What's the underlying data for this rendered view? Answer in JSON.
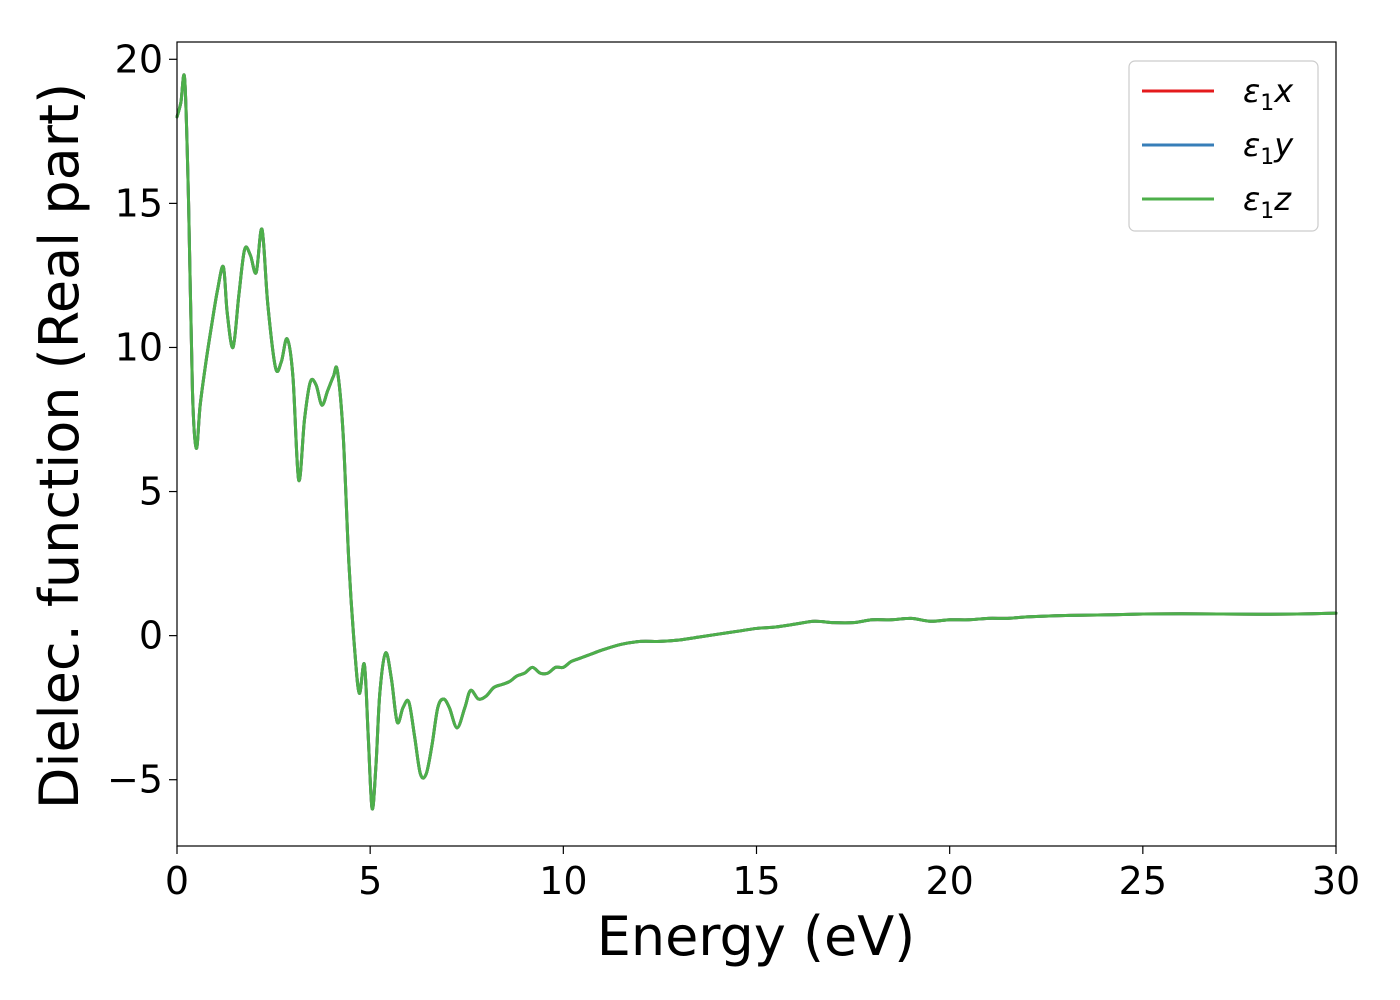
{
  "chart_data": {
    "type": "line",
    "title": "",
    "xlabel": "Energy (eV)",
    "ylabel": "Dielec. function (Real part)",
    "xlim": [
      0,
      30
    ],
    "ylim": [
      -7.3,
      20.6
    ],
    "xticks": [
      0,
      5,
      10,
      15,
      20,
      25,
      30
    ],
    "yticks": [
      -5,
      0,
      5,
      10,
      15,
      20
    ],
    "xtick_labels": [
      "0",
      "5",
      "10",
      "15",
      "20",
      "25",
      "30"
    ],
    "ytick_labels": [
      "−5",
      "0",
      "5",
      "10",
      "15",
      "20"
    ],
    "grid": false,
    "legend_position": "top-right",
    "x": [
      0.0,
      0.1,
      0.2,
      0.3,
      0.4,
      0.5,
      0.6,
      0.75,
      0.9,
      1.05,
      1.2,
      1.3,
      1.45,
      1.6,
      1.75,
      1.9,
      2.05,
      2.2,
      2.35,
      2.55,
      2.7,
      2.85,
      3.0,
      3.15,
      3.3,
      3.45,
      3.6,
      3.75,
      3.9,
      4.05,
      4.15,
      4.3,
      4.45,
      4.6,
      4.72,
      4.85,
      4.95,
      5.05,
      5.15,
      5.25,
      5.4,
      5.55,
      5.7,
      5.85,
      6.0,
      6.15,
      6.3,
      6.45,
      6.6,
      6.75,
      6.9,
      7.05,
      7.25,
      7.45,
      7.6,
      7.8,
      8.0,
      8.2,
      8.4,
      8.6,
      8.8,
      9.0,
      9.2,
      9.4,
      9.6,
      9.8,
      10.0,
      10.2,
      10.4,
      10.6,
      10.8,
      11.0,
      11.5,
      12.0,
      12.5,
      13.0,
      13.5,
      14.0,
      14.5,
      15.0,
      15.5,
      16.0,
      16.5,
      17.0,
      17.5,
      18.0,
      18.5,
      19.0,
      19.5,
      20.0,
      20.5,
      21.0,
      21.5,
      22.0,
      23.0,
      24.0,
      25.0,
      26.0,
      27.0,
      28.0,
      29.0,
      30.0
    ],
    "series": [
      {
        "name": "ε",
        "name_sub": "1",
        "name_suffix": "x",
        "color": "#e41a1c",
        "values": [
          18.0,
          18.5,
          19.3,
          15.0,
          8.5,
          6.5,
          8.0,
          9.5,
          10.8,
          12.0,
          12.8,
          11.2,
          10.0,
          11.8,
          13.4,
          13.2,
          12.6,
          14.1,
          11.5,
          9.3,
          9.5,
          10.3,
          9.0,
          5.4,
          7.5,
          8.8,
          8.7,
          8.0,
          8.5,
          9.0,
          9.2,
          7.0,
          2.5,
          -0.5,
          -2.0,
          -1.0,
          -3.5,
          -6.0,
          -4.5,
          -2.0,
          -0.6,
          -1.5,
          -3.0,
          -2.5,
          -2.3,
          -3.5,
          -4.8,
          -4.8,
          -3.8,
          -2.5,
          -2.2,
          -2.5,
          -3.2,
          -2.5,
          -1.9,
          -2.2,
          -2.1,
          -1.8,
          -1.7,
          -1.6,
          -1.4,
          -1.3,
          -1.1,
          -1.3,
          -1.3,
          -1.1,
          -1.1,
          -0.9,
          -0.8,
          -0.7,
          -0.6,
          -0.5,
          -0.3,
          -0.2,
          -0.2,
          -0.15,
          -0.05,
          0.05,
          0.15,
          0.25,
          0.3,
          0.4,
          0.5,
          0.45,
          0.45,
          0.55,
          0.55,
          0.6,
          0.5,
          0.55,
          0.55,
          0.6,
          0.6,
          0.65,
          0.7,
          0.72,
          0.75,
          0.76,
          0.75,
          0.74,
          0.75,
          0.78
        ]
      },
      {
        "name": "ε",
        "name_sub": "1",
        "name_suffix": "y",
        "color": "#377eb8",
        "values": [
          18.0,
          18.5,
          19.3,
          15.0,
          8.5,
          6.5,
          8.0,
          9.5,
          10.8,
          12.0,
          12.8,
          11.2,
          10.0,
          11.8,
          13.4,
          13.2,
          12.6,
          14.1,
          11.5,
          9.3,
          9.5,
          10.3,
          9.0,
          5.4,
          7.5,
          8.8,
          8.7,
          8.0,
          8.5,
          9.0,
          9.2,
          7.0,
          2.5,
          -0.5,
          -2.0,
          -1.0,
          -3.5,
          -6.0,
          -4.5,
          -2.0,
          -0.6,
          -1.5,
          -3.0,
          -2.5,
          -2.3,
          -3.5,
          -4.8,
          -4.8,
          -3.8,
          -2.5,
          -2.2,
          -2.5,
          -3.2,
          -2.5,
          -1.9,
          -2.2,
          -2.1,
          -1.8,
          -1.7,
          -1.6,
          -1.4,
          -1.3,
          -1.1,
          -1.3,
          -1.3,
          -1.1,
          -1.1,
          -0.9,
          -0.8,
          -0.7,
          -0.6,
          -0.5,
          -0.3,
          -0.2,
          -0.2,
          -0.15,
          -0.05,
          0.05,
          0.15,
          0.25,
          0.3,
          0.4,
          0.5,
          0.45,
          0.45,
          0.55,
          0.55,
          0.6,
          0.5,
          0.55,
          0.55,
          0.6,
          0.6,
          0.65,
          0.7,
          0.72,
          0.75,
          0.76,
          0.75,
          0.74,
          0.75,
          0.78
        ]
      },
      {
        "name": "ε",
        "name_sub": "1",
        "name_suffix": "z",
        "color": "#4daf4a",
        "values": [
          18.0,
          18.5,
          19.3,
          15.0,
          8.5,
          6.5,
          8.0,
          9.5,
          10.8,
          12.0,
          12.8,
          11.2,
          10.0,
          11.8,
          13.4,
          13.2,
          12.6,
          14.1,
          11.5,
          9.3,
          9.5,
          10.3,
          9.0,
          5.4,
          7.5,
          8.8,
          8.7,
          8.0,
          8.5,
          9.0,
          9.2,
          7.0,
          2.5,
          -0.5,
          -2.0,
          -1.0,
          -3.5,
          -6.0,
          -4.5,
          -2.0,
          -0.6,
          -1.5,
          -3.0,
          -2.5,
          -2.3,
          -3.5,
          -4.8,
          -4.8,
          -3.8,
          -2.5,
          -2.2,
          -2.5,
          -3.2,
          -2.5,
          -1.9,
          -2.2,
          -2.1,
          -1.8,
          -1.7,
          -1.6,
          -1.4,
          -1.3,
          -1.1,
          -1.3,
          -1.3,
          -1.1,
          -1.1,
          -0.9,
          -0.8,
          -0.7,
          -0.6,
          -0.5,
          -0.3,
          -0.2,
          -0.2,
          -0.15,
          -0.05,
          0.05,
          0.15,
          0.25,
          0.3,
          0.4,
          0.5,
          0.45,
          0.45,
          0.55,
          0.55,
          0.6,
          0.5,
          0.55,
          0.55,
          0.6,
          0.6,
          0.65,
          0.7,
          0.72,
          0.75,
          0.76,
          0.75,
          0.74,
          0.75,
          0.78
        ]
      }
    ]
  }
}
